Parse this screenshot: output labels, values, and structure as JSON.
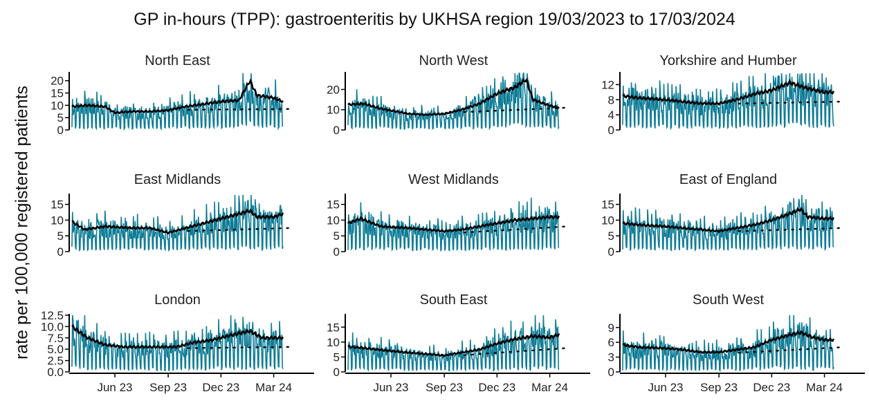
{
  "chart_data": {
    "type": "line",
    "title": "GP in-hours (TPP): gastroenteritis by UKHSA region 19/03/2023 to 17/03/2024",
    "ylabel": "rate per 100,000 registered patients",
    "xlabel": "",
    "x_range": [
      "2023-03-19",
      "2024-03-17"
    ],
    "x_ticks": [
      "Jun 23",
      "Sep 23",
      "Dec 23",
      "Mar 24"
    ],
    "series_styles": {
      "daily_rate": "#0e7c96",
      "rolling_average": "#000000",
      "baseline": "dotted black"
    },
    "grid": false,
    "legend": "none",
    "panels": [
      {
        "title": "North East",
        "y_ticks": [
          "0",
          "5",
          "10",
          "15",
          "20"
        ],
        "ylim": [
          0,
          23
        ],
        "baseline_end": 8.5,
        "trend": [
          [
            "2023-03-19",
            9.5
          ],
          [
            "2023-04-15",
            10
          ],
          [
            "2023-05-15",
            9.5
          ],
          [
            "2023-06-01",
            7
          ],
          [
            "2023-07-01",
            7.5
          ],
          [
            "2023-08-01",
            7.5
          ],
          [
            "2023-09-01",
            8
          ],
          [
            "2023-10-01",
            9.5
          ],
          [
            "2023-11-01",
            10.5
          ],
          [
            "2023-12-01",
            11.5
          ],
          [
            "2024-01-01",
            12
          ],
          [
            "2024-01-20",
            20
          ],
          [
            "2024-02-01",
            14
          ],
          [
            "2024-03-01",
            13
          ],
          [
            "2024-03-17",
            11.5
          ]
        ]
      },
      {
        "title": "North West",
        "y_ticks": [
          "0",
          "10",
          "20"
        ],
        "ylim": [
          0,
          28
        ],
        "baseline_end": 11,
        "trend": [
          [
            "2023-03-19",
            12.5
          ],
          [
            "2023-04-15",
            13
          ],
          [
            "2023-05-15",
            10.5
          ],
          [
            "2023-07-01",
            8
          ],
          [
            "2023-08-01",
            7.5
          ],
          [
            "2023-09-01",
            8
          ],
          [
            "2023-10-01",
            10
          ],
          [
            "2023-11-01",
            13
          ],
          [
            "2023-12-01",
            18
          ],
          [
            "2024-01-01",
            21
          ],
          [
            "2024-01-20",
            25
          ],
          [
            "2024-02-01",
            15
          ],
          [
            "2024-03-01",
            12
          ],
          [
            "2024-03-17",
            11
          ]
        ]
      },
      {
        "title": "Yorkshire and Humber",
        "y_ticks": [
          "0",
          "4",
          "8",
          "12"
        ],
        "ylim": [
          0,
          15
        ],
        "baseline_end": 7.5,
        "trend": [
          [
            "2023-03-19",
            9
          ],
          [
            "2023-04-15",
            8.5
          ],
          [
            "2023-06-01",
            8
          ],
          [
            "2023-07-01",
            7.5
          ],
          [
            "2023-08-01",
            7
          ],
          [
            "2023-09-01",
            7
          ],
          [
            "2023-10-01",
            8
          ],
          [
            "2023-11-01",
            9.5
          ],
          [
            "2023-12-01",
            10.5
          ],
          [
            "2024-01-01",
            12.5
          ],
          [
            "2024-02-01",
            11
          ],
          [
            "2024-03-01",
            10
          ],
          [
            "2024-03-17",
            10
          ]
        ]
      },
      {
        "title": "East Midlands",
        "y_ticks": [
          "0",
          "5",
          "10",
          "15"
        ],
        "ylim": [
          0,
          18
        ],
        "baseline_end": 7.5,
        "trend": [
          [
            "2023-03-19",
            9.5
          ],
          [
            "2023-04-10",
            7
          ],
          [
            "2023-05-15",
            8
          ],
          [
            "2023-07-01",
            7.5
          ],
          [
            "2023-08-01",
            7.5
          ],
          [
            "2023-09-01",
            6
          ],
          [
            "2023-10-01",
            7.5
          ],
          [
            "2023-11-01",
            9
          ],
          [
            "2023-12-01",
            10.5
          ],
          [
            "2024-01-01",
            12
          ],
          [
            "2024-01-20",
            13
          ],
          [
            "2024-02-01",
            11
          ],
          [
            "2024-03-01",
            11
          ],
          [
            "2024-03-17",
            12
          ]
        ]
      },
      {
        "title": "West Midlands",
        "y_ticks": [
          "0",
          "5",
          "10",
          "15"
        ],
        "ylim": [
          0,
          18
        ],
        "baseline_end": 8,
        "trend": [
          [
            "2023-03-19",
            9
          ],
          [
            "2023-04-10",
            10.5
          ],
          [
            "2023-05-15",
            8
          ],
          [
            "2023-07-01",
            7.5
          ],
          [
            "2023-08-01",
            7
          ],
          [
            "2023-09-01",
            6.5
          ],
          [
            "2023-10-01",
            7
          ],
          [
            "2023-11-01",
            8
          ],
          [
            "2023-12-01",
            9
          ],
          [
            "2024-01-01",
            10
          ],
          [
            "2024-02-01",
            10.5
          ],
          [
            "2024-03-01",
            11
          ],
          [
            "2024-03-17",
            11
          ]
        ]
      },
      {
        "title": "East of England",
        "y_ticks": [
          "0",
          "5",
          "10",
          "15"
        ],
        "ylim": [
          0,
          18
        ],
        "baseline_end": 7.5,
        "trend": [
          [
            "2023-03-19",
            9
          ],
          [
            "2023-04-15",
            8.5
          ],
          [
            "2023-06-01",
            8
          ],
          [
            "2023-07-01",
            7.5
          ],
          [
            "2023-08-01",
            7
          ],
          [
            "2023-09-01",
            6.5
          ],
          [
            "2023-10-01",
            7.5
          ],
          [
            "2023-11-01",
            8.5
          ],
          [
            "2023-12-01",
            10
          ],
          [
            "2024-01-01",
            12
          ],
          [
            "2024-01-20",
            13.5
          ],
          [
            "2024-02-01",
            11
          ],
          [
            "2024-03-01",
            10.5
          ],
          [
            "2024-03-17",
            10.5
          ]
        ]
      },
      {
        "title": "London",
        "y_ticks": [
          "0.0",
          "2.5",
          "5.0",
          "7.5",
          "10.0",
          "12.5"
        ],
        "ylim": [
          0,
          12.5
        ],
        "baseline_end": 5.5,
        "trend": [
          [
            "2023-03-19",
            10
          ],
          [
            "2023-04-15",
            7.5
          ],
          [
            "2023-05-15",
            6
          ],
          [
            "2023-06-15",
            5.5
          ],
          [
            "2023-07-15",
            5.5
          ],
          [
            "2023-08-15",
            5.5
          ],
          [
            "2023-09-15",
            5.5
          ],
          [
            "2023-10-15",
            6.5
          ],
          [
            "2023-11-15",
            7
          ],
          [
            "2023-12-15",
            8
          ],
          [
            "2024-01-01",
            8.5
          ],
          [
            "2024-01-20",
            9
          ],
          [
            "2024-02-10",
            7.5
          ],
          [
            "2024-03-01",
            7.5
          ],
          [
            "2024-03-17",
            7.5
          ]
        ]
      },
      {
        "title": "South East",
        "y_ticks": [
          "0",
          "5",
          "10",
          "15"
        ],
        "ylim": [
          0,
          19
        ],
        "baseline_end": 8,
        "trend": [
          [
            "2023-03-19",
            8.5
          ],
          [
            "2023-04-15",
            8
          ],
          [
            "2023-06-01",
            7
          ],
          [
            "2023-07-01",
            6.5
          ],
          [
            "2023-08-01",
            6
          ],
          [
            "2023-09-01",
            5.5
          ],
          [
            "2023-10-01",
            6.5
          ],
          [
            "2023-11-01",
            7.5
          ],
          [
            "2023-12-01",
            9.5
          ],
          [
            "2024-01-01",
            11
          ],
          [
            "2024-02-01",
            12
          ],
          [
            "2024-03-01",
            11.5
          ],
          [
            "2024-03-17",
            12.5
          ]
        ]
      },
      {
        "title": "South West",
        "y_ticks": [
          "0",
          "3",
          "6",
          "9"
        ],
        "ylim": [
          0,
          11.5
        ],
        "baseline_end": 5,
        "trend": [
          [
            "2023-03-19",
            5.5
          ],
          [
            "2023-04-15",
            5
          ],
          [
            "2023-06-01",
            4.8
          ],
          [
            "2023-07-01",
            4.5
          ],
          [
            "2023-08-01",
            4
          ],
          [
            "2023-09-01",
            4
          ],
          [
            "2023-10-01",
            4.5
          ],
          [
            "2023-11-01",
            5
          ],
          [
            "2023-12-01",
            6.5
          ],
          [
            "2024-01-01",
            7.5
          ],
          [
            "2024-01-20",
            8
          ],
          [
            "2024-02-10",
            7
          ],
          [
            "2024-03-01",
            6.5
          ],
          [
            "2024-03-17",
            6.5
          ]
        ]
      }
    ]
  }
}
